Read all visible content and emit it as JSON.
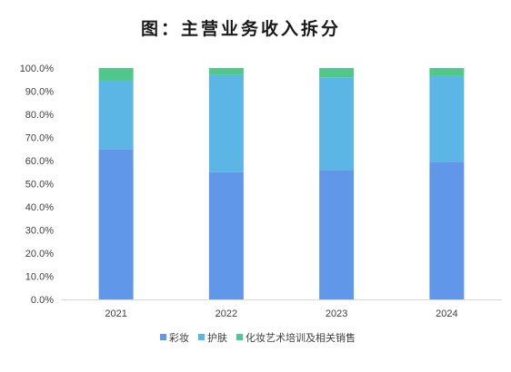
{
  "chart_data": {
    "type": "bar",
    "stacked": true,
    "title": "图：主营业务收入拆分",
    "categories": [
      "2021",
      "2022",
      "2023",
      "2024"
    ],
    "series": [
      {
        "name": "彩妆",
        "values": [
          65.0,
          55.0,
          56.0,
          59.5
        ],
        "color": "#6197E8"
      },
      {
        "name": "护肤",
        "values": [
          29.5,
          42.0,
          40.0,
          37.0
        ],
        "color": "#5BB6E6"
      },
      {
        "name": "化妆艺术培训及相关销售",
        "values": [
          5.5,
          3.0,
          4.0,
          3.5
        ],
        "color": "#50C88A"
      }
    ],
    "ylim": [
      0,
      100
    ],
    "yticks": [
      "0.0%",
      "10.0%",
      "20.0%",
      "30.0%",
      "40.0%",
      "50.0%",
      "60.0%",
      "70.0%",
      "80.0%",
      "90.0%",
      "100.0%"
    ],
    "xlabel": "",
    "ylabel": "",
    "grid": false,
    "legend_position": "bottom"
  }
}
